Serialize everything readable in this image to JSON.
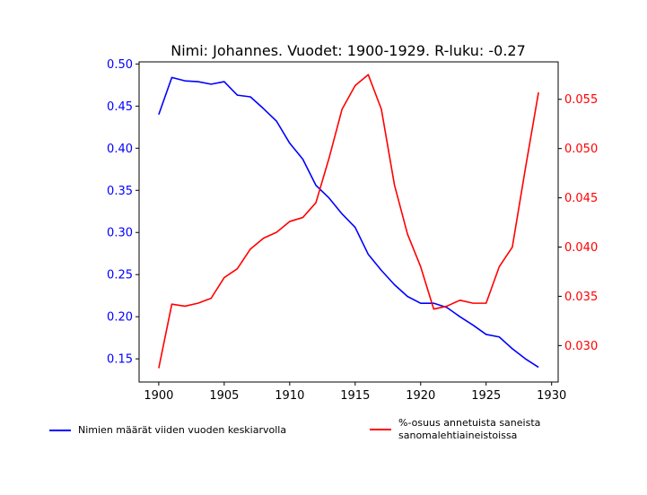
{
  "chart_data": {
    "type": "line",
    "title": "Nimi: Johannes. Vuodet: 1900-1929. R-luku: -0.27",
    "x": [
      1900,
      1901,
      1902,
      1903,
      1904,
      1905,
      1906,
      1907,
      1908,
      1909,
      1910,
      1911,
      1912,
      1913,
      1914,
      1915,
      1916,
      1917,
      1918,
      1919,
      1920,
      1921,
      1922,
      1923,
      1924,
      1925,
      1926,
      1927,
      1928,
      1929
    ],
    "xlim": [
      1898.5,
      1930.5
    ],
    "xticks": [
      1900,
      1905,
      1910,
      1915,
      1920,
      1925,
      1930
    ],
    "left_axis": {
      "ylim": [
        0.1225,
        0.5025
      ],
      "ticks": [
        "0.15",
        "0.20",
        "0.25",
        "0.30",
        "0.35",
        "0.40",
        "0.45",
        "0.50"
      ],
      "color": "#0000ff"
    },
    "right_axis": {
      "ylim": [
        0.0263,
        0.0588
      ],
      "ticks": [
        "0.030",
        "0.035",
        "0.040",
        "0.045",
        "0.050",
        "0.055"
      ],
      "color": "#ff0000"
    },
    "series": [
      {
        "name": "Nimien määrät viiden vuoden keskiarvolla",
        "axis": "left",
        "color": "#0000ff",
        "values": [
          0.44,
          0.484,
          0.48,
          0.479,
          0.476,
          0.479,
          0.463,
          0.461,
          0.447,
          0.432,
          0.406,
          0.387,
          0.356,
          0.341,
          0.322,
          0.306,
          0.274,
          0.255,
          0.238,
          0.224,
          0.216,
          0.216,
          0.211,
          0.2,
          0.19,
          0.179,
          0.176,
          0.162,
          0.15,
          0.14
        ]
      },
      {
        "name": "%-osuus annetuista saneista\n sanomalehtiaineistoissa",
        "axis": "right",
        "color": "#ff0000",
        "values": [
          0.0277,
          0.0342,
          0.034,
          0.0343,
          0.0348,
          0.0369,
          0.0378,
          0.0398,
          0.0409,
          0.0415,
          0.0426,
          0.043,
          0.0445,
          0.049,
          0.054,
          0.0564,
          0.0575,
          0.054,
          0.0463,
          0.0413,
          0.038,
          0.0337,
          0.034,
          0.0346,
          0.0343,
          0.0343,
          0.038,
          0.04,
          0.048,
          0.0557
        ]
      }
    ],
    "grid": false,
    "legend_placement": "bottom"
  }
}
